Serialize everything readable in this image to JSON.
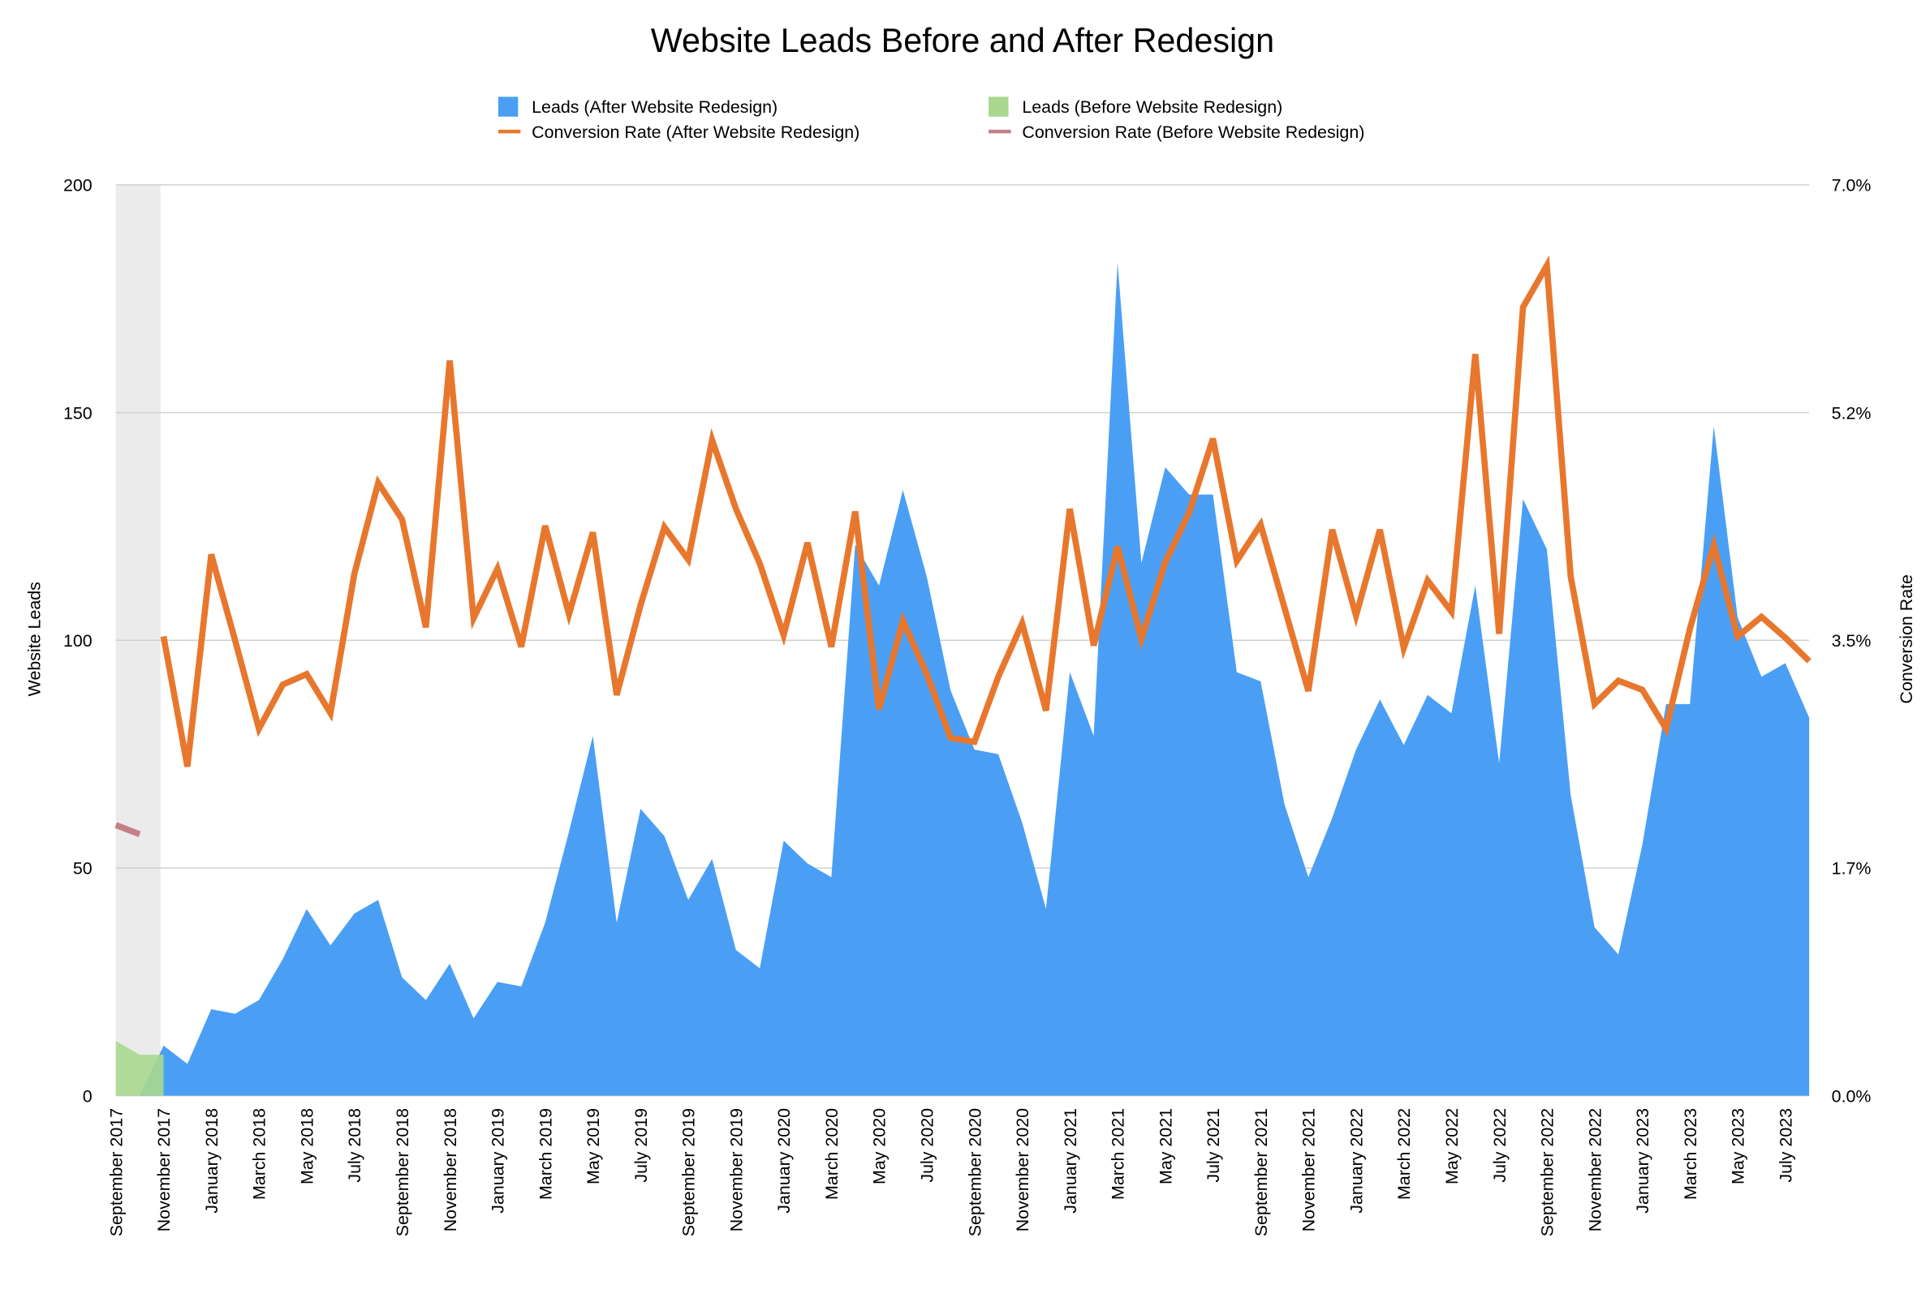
{
  "chart_data": {
    "type": "area",
    "title": "Website Leads Before and After Redesign",
    "y_label": "Website Leads",
    "y2_label": "Conversion Rate",
    "categories": [
      "September 2017",
      null,
      "November 2017",
      null,
      "January 2018",
      null,
      "March 2018",
      null,
      "May 2018",
      null,
      "July 2018",
      null,
      "September 2018",
      null,
      "November 2018",
      null,
      "January 2019",
      null,
      "March 2019",
      null,
      "May 2019",
      null,
      "July 2019",
      null,
      "September 2019",
      null,
      "November 2019",
      null,
      "January 2020",
      null,
      "March 2020",
      null,
      "May 2020",
      null,
      "July 2020",
      null,
      "September 2020",
      null,
      "November 2020",
      null,
      "January 2021",
      null,
      "March 2021",
      null,
      "May 2021",
      null,
      "July 2021",
      null,
      "September 2021",
      null,
      "November 2021",
      null,
      "January 2022",
      null,
      "March 2022",
      null,
      "May 2022",
      null,
      "July 2022",
      null,
      "September 2022",
      null,
      "November 2022",
      null,
      "January 2023",
      null,
      "March 2023",
      null,
      "May 2023",
      null,
      "July 2023",
      null
    ],
    "series": [
      {
        "name": "Leads (After Website Redesign)",
        "kind": "area",
        "color": "#4a9ff5",
        "values": [
          null,
          0,
          11,
          7,
          19,
          18,
          21,
          30,
          41,
          33,
          40,
          43,
          26,
          21,
          29,
          17,
          25,
          24,
          38,
          58,
          79,
          38,
          63,
          57,
          43,
          52,
          32,
          28,
          56,
          51,
          48,
          121,
          112,
          133,
          114,
          89,
          76,
          75,
          60,
          41,
          93,
          79,
          183,
          117,
          138,
          132,
          132,
          93,
          91,
          64,
          48,
          61,
          76,
          87,
          77,
          88,
          84,
          112,
          73,
          131,
          120,
          66,
          37,
          31,
          55,
          86,
          86,
          147,
          105,
          92,
          95,
          83
        ]
      },
      {
        "name": "Leads (Before Website Redesign)",
        "kind": "area",
        "color": "#a8d88f",
        "values": [
          12,
          9,
          9,
          null,
          null,
          null,
          null,
          null,
          null,
          null,
          null,
          null,
          null,
          null,
          null,
          null,
          null,
          null,
          null,
          null,
          null,
          null,
          null,
          null,
          null,
          null,
          null,
          null,
          null,
          null,
          null,
          null,
          null,
          null,
          null,
          null,
          null,
          null,
          null,
          null,
          null,
          null,
          null,
          null,
          null,
          null,
          null,
          null,
          null,
          null,
          null,
          null,
          null,
          null,
          null,
          null,
          null,
          null,
          null,
          null,
          null,
          null,
          null,
          null,
          null,
          null,
          null,
          null,
          null,
          null,
          null,
          null
        ]
      },
      {
        "name": "Conversion Rate (After Website Redesign)",
        "kind": "line",
        "axis": "y2",
        "color": "#e8772e",
        "values": [
          null,
          null,
          3.53,
          2.53,
          4.16,
          3.5,
          2.82,
          3.16,
          3.24,
          2.94,
          4.01,
          4.71,
          4.43,
          3.6,
          5.65,
          3.67,
          4.05,
          3.45,
          4.38,
          3.7,
          4.33,
          3.08,
          3.77,
          4.37,
          4.12,
          5.04,
          4.51,
          4.09,
          3.54,
          4.25,
          3.45,
          4.49,
          2.97,
          3.65,
          3.24,
          2.75,
          2.72,
          3.22,
          3.63,
          2.96,
          4.51,
          3.46,
          4.22,
          3.51,
          4.1,
          4.48,
          5.05,
          4.11,
          4.39,
          3.75,
          3.11,
          4.35,
          3.69,
          4.35,
          3.44,
          3.96,
          3.72,
          5.7,
          3.55,
          6.06,
          6.38,
          3.99,
          3.01,
          3.19,
          3.12,
          2.82,
          3.59,
          4.23,
          3.53,
          3.68,
          3.52,
          3.34
        ]
      },
      {
        "name": "Conversion Rate (Before Website Redesign)",
        "kind": "line",
        "axis": "y2",
        "color": "#c47f86",
        "values": [
          2.08,
          2.01,
          null,
          null,
          null,
          null,
          null,
          null,
          null,
          null,
          null,
          null,
          null,
          null,
          null,
          null,
          null,
          null,
          null,
          null,
          null,
          null,
          null,
          null,
          null,
          null,
          null,
          null,
          null,
          null,
          null,
          null,
          null,
          null,
          null,
          null,
          null,
          null,
          null,
          null,
          null,
          null,
          null,
          null,
          null,
          null,
          null,
          null,
          null,
          null,
          null,
          null,
          null,
          null,
          null,
          null,
          null,
          null,
          null,
          null,
          null,
          null,
          null,
          null,
          null,
          null,
          null,
          null,
          null,
          null,
          null,
          null
        ]
      }
    ],
    "ylim": [
      0,
      200
    ],
    "yticks": [
      0,
      50,
      100,
      150,
      200
    ],
    "y2lim": [
      0,
      7
    ],
    "y2ticks": [
      {
        "value": 0,
        "label": "0.0%"
      },
      {
        "value": 1.75,
        "label": "1.7%"
      },
      {
        "value": 3.5,
        "label": "3.5%"
      },
      {
        "value": 5.25,
        "label": "5.2%"
      },
      {
        "value": 7,
        "label": "7.0%"
      }
    ],
    "grid": true,
    "legend": "top"
  }
}
